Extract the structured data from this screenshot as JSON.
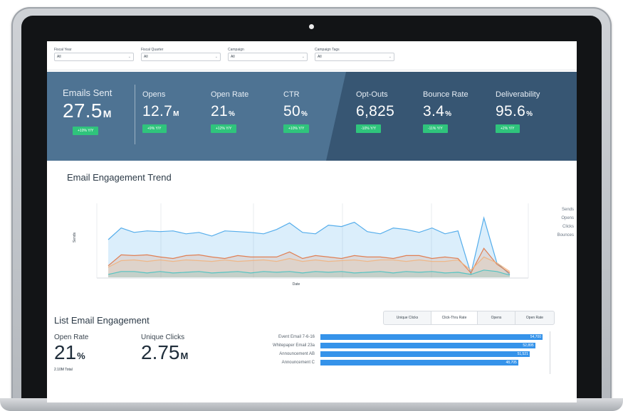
{
  "filters": [
    {
      "label": "Fiscal Year",
      "value": "All"
    },
    {
      "label": "Fiscal Quarter",
      "value": "All"
    },
    {
      "label": "Campaign",
      "value": "All"
    },
    {
      "label": "Campaign Tags",
      "value": "All"
    }
  ],
  "kpis": [
    {
      "label": "Emails Sent",
      "value": "27.5",
      "unit": "M",
      "badge": "+10% Y/Y"
    },
    {
      "label": "Opens",
      "value": "12.7",
      "unit": "M",
      "badge": "+9% Y/Y"
    },
    {
      "label": "Open Rate",
      "value": "21",
      "unit": "%",
      "badge": "+12% Y/Y"
    },
    {
      "label": "CTR",
      "value": "50",
      "unit": "%",
      "badge": "+10% Y/Y"
    },
    {
      "label": "Opt-Outs",
      "value": "6,825",
      "unit": "",
      "badge": "-10% Y/Y"
    },
    {
      "label": "Bounce Rate",
      "value": "3.4",
      "unit": "%",
      "badge": "-11% Y/Y"
    },
    {
      "label": "Deliverability",
      "value": "95.6",
      "unit": "%",
      "badge": "+2% Y/Y"
    }
  ],
  "trend": {
    "title": "Email Engagement Trend",
    "xlabel": "Date",
    "ylabel": "Sends",
    "legend": [
      {
        "name": "Sends",
        "color": "#3aa0e8"
      },
      {
        "name": "Opens",
        "color": "#e06d3a"
      },
      {
        "name": "Clicks",
        "color": "#f2b27a"
      },
      {
        "name": "Bounces",
        "color": "#3fc1c1"
      }
    ]
  },
  "chart_data": {
    "type": "area",
    "title": "Email Engagement Trend",
    "xlabel": "Date",
    "ylabel": "Sends",
    "ylim": [
      0,
      100
    ],
    "grid": true,
    "legend": "right",
    "x": [
      1,
      2,
      3,
      4,
      5,
      6,
      7,
      8,
      9,
      10,
      11,
      12,
      13,
      14,
      15,
      16,
      17,
      18,
      19,
      20,
      21,
      22,
      23,
      24,
      25,
      26,
      27,
      28,
      29,
      30,
      31,
      32
    ],
    "series": [
      {
        "name": "Sends",
        "color": "#3aa0e8",
        "values": [
          52,
          68,
          62,
          64,
          63,
          64,
          60,
          62,
          57,
          64,
          63,
          62,
          60,
          66,
          75,
          62,
          60,
          72,
          70,
          76,
          63,
          60,
          68,
          66,
          62,
          68,
          60,
          64,
          5,
          82,
          20,
          4
        ]
      },
      {
        "name": "Opens",
        "color": "#e06d3a",
        "values": [
          16,
          31,
          30,
          31,
          28,
          26,
          30,
          31,
          28,
          26,
          30,
          28,
          28,
          28,
          35,
          26,
          30,
          28,
          26,
          30,
          28,
          28,
          26,
          30,
          30,
          26,
          28,
          26,
          6,
          40,
          18,
          6
        ]
      },
      {
        "name": "Clicks",
        "color": "#f2b27a",
        "values": [
          14,
          23,
          24,
          22,
          24,
          22,
          24,
          23,
          22,
          24,
          22,
          23,
          24,
          22,
          26,
          22,
          24,
          22,
          23,
          24,
          22,
          24,
          24,
          22,
          24,
          22,
          22,
          24,
          10,
          28,
          20,
          8
        ]
      },
      {
        "name": "Bounces",
        "color": "#3fc1c1",
        "values": [
          4,
          8,
          8,
          6,
          8,
          6,
          7,
          8,
          6,
          7,
          8,
          6,
          8,
          7,
          8,
          6,
          8,
          7,
          8,
          6,
          7,
          8,
          6,
          8,
          7,
          8,
          6,
          7,
          4,
          10,
          8,
          3
        ]
      }
    ]
  },
  "engagement": {
    "title": "List Email Engagement",
    "tabs": [
      "Unique Clicks",
      "Click-Thru Rate",
      "Opens",
      "Open Rate"
    ],
    "active_tab": 1,
    "open_rate": {
      "label": "Open Rate",
      "value": "21",
      "unit": "%",
      "sub": "2.10M Total"
    },
    "unique_clicks": {
      "label": "Unique Clicks",
      "value": "2.75",
      "unit": "M"
    },
    "bars": [
      {
        "label": "Event Email 7-6-16",
        "value": "54,700",
        "num": 54700
      },
      {
        "label": "Whitepaper Email 23a",
        "value": "52,895",
        "num": 52895
      },
      {
        "label": "Announcement AB",
        "value": "51,521",
        "num": 51521
      },
      {
        "label": "Announcement C",
        "value": "48,705",
        "num": 48705
      }
    ]
  }
}
